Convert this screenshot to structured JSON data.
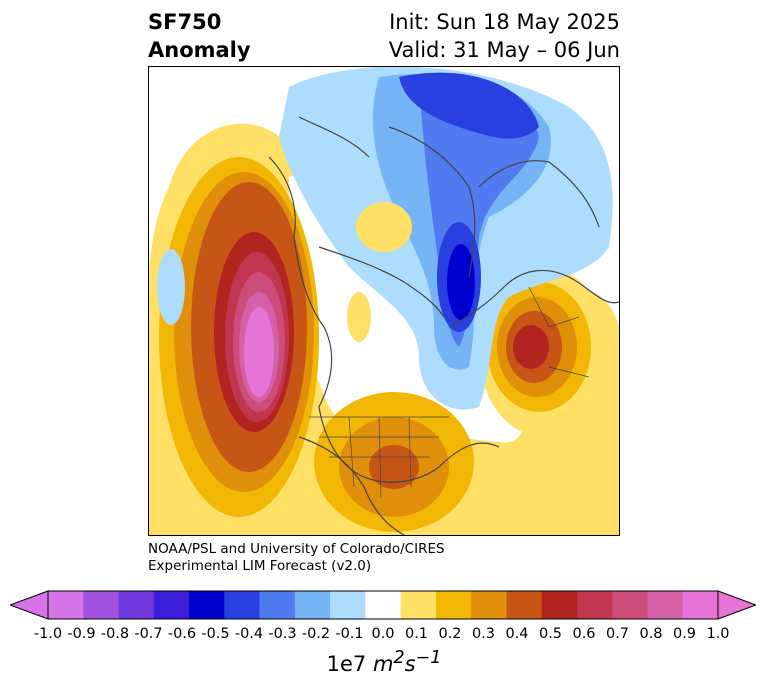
{
  "title": {
    "line1_left": "SF750",
    "line2_left": "Anomaly",
    "line1_right": "Init: Sun 18 May 2025",
    "line2_right": "Valid: 31 May – 06 Jun"
  },
  "credit": {
    "line1": "NOAA/PSL and University of Colorado/CIRES",
    "line2": "Experimental LIM Forecast (v2.0)"
  },
  "colorbar": {
    "ticks": [
      "-1.0",
      "-0.9",
      "-0.8",
      "-0.7",
      "-0.6",
      "-0.5",
      "-0.4",
      "-0.3",
      "-0.2",
      "-0.1",
      "0.0",
      "0.1",
      "0.2",
      "0.3",
      "0.4",
      "0.5",
      "0.6",
      "0.7",
      "0.8",
      "0.9",
      "1.0"
    ],
    "colors": [
      "#d673e6",
      "#a153e0",
      "#6f39de",
      "#3a1ed8",
      "#0000cc",
      "#2a3fe0",
      "#4f7af0",
      "#75b4f5",
      "#aedcfc",
      "#ffffff",
      "#ffe066",
      "#f2b705",
      "#e08f0a",
      "#c75616",
      "#b2241f",
      "#c03650",
      "#cc4c7a",
      "#d660a8",
      "#e673d6"
    ],
    "under_color": "#d673e6",
    "over_color": "#e673d6",
    "scale_prefix": "1e7",
    "units_base": "m",
    "units_exp1": "2",
    "units_s": "s",
    "units_exp2": "−1"
  },
  "map": {
    "projection": "north polar stereographic",
    "field": "750 hPa streamfunction anomaly",
    "features": [
      {
        "label": "positive anomaly, NE Pacific",
        "peak": 1.0
      },
      {
        "label": "positive anomaly, E Europe / W Russia",
        "peak": 0.6
      },
      {
        "label": "positive anomaly, central/eastern US",
        "peak": 0.4
      },
      {
        "label": "negative anomaly, N Atlantic / Greenland",
        "peak": -0.6
      },
      {
        "label": "negative anomaly, tropical Pacific edge",
        "peak": -0.4
      }
    ]
  }
}
